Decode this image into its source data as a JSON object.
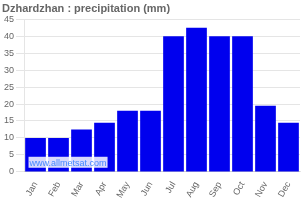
{
  "chart_data": {
    "type": "bar",
    "title": "Dzhardzhan : precipitation (mm)",
    "categories": [
      "Jan",
      "Feb",
      "Mar",
      "Apr",
      "May",
      "Jun",
      "Jul",
      "Aug",
      "Sep",
      "Oct",
      "Nov",
      "Dec"
    ],
    "values": [
      10,
      10,
      12.5,
      14.5,
      18,
      18,
      40,
      42.5,
      40,
      40,
      19.5,
      14.5
    ],
    "color": "#0000EE",
    "ylim": [
      0,
      45
    ],
    "yticks": [
      0,
      5,
      10,
      15,
      20,
      25,
      30,
      35,
      40,
      45
    ],
    "grid": true,
    "annotation": "www.allmetsat.com"
  }
}
